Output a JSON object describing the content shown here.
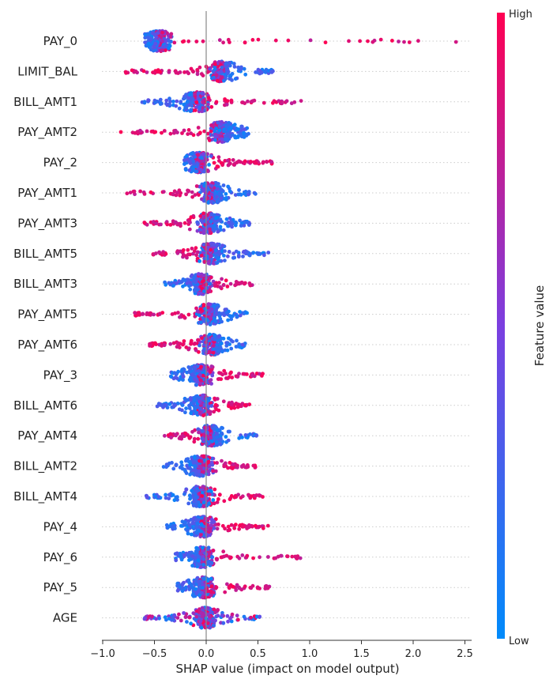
{
  "chart_data": {
    "type": "scatter",
    "subtype": "shap-beeswarm",
    "xlabel": "SHAP value (impact on model output)",
    "xlim": [
      -1.0,
      2.5
    ],
    "xticks": [
      -1.0,
      -0.5,
      0.0,
      0.5,
      1.0,
      1.5,
      2.0,
      2.5
    ],
    "xtick_labels": [
      "−1.0",
      "−0.5",
      "0.0",
      "0.5",
      "1.0",
      "1.5",
      "2.0",
      "2.5"
    ],
    "colorbar": {
      "label": "Feature value",
      "high_label": "High",
      "low_label": "Low",
      "low_color": "#008bfb",
      "high_color": "#ff0052"
    },
    "features": [
      {
        "name": "PAY_0",
        "min": -0.6,
        "max": 2.42,
        "low_side": "left",
        "low_center": -0.45
      },
      {
        "name": "LIMIT_BAL",
        "min": -0.8,
        "max": 0.65,
        "low_side": "right",
        "low_center": 0.15
      },
      {
        "name": "BILL_AMT1",
        "min": -0.62,
        "max": 0.92,
        "low_side": "left",
        "low_center": -0.1
      },
      {
        "name": "PAY_AMT2",
        "min": -0.85,
        "max": 0.42,
        "low_side": "right",
        "low_center": 0.15
      },
      {
        "name": "PAY_2",
        "min": -0.22,
        "max": 0.68,
        "low_side": "left",
        "low_center": -0.07
      },
      {
        "name": "PAY_AMT1",
        "min": -0.85,
        "max": 0.48,
        "low_side": "right",
        "low_center": 0.05
      },
      {
        "name": "PAY_AMT3",
        "min": -0.6,
        "max": 0.42,
        "low_side": "right",
        "low_center": 0.02
      },
      {
        "name": "BILL_AMT5",
        "min": -0.52,
        "max": 0.62,
        "low_side": "right",
        "low_center": 0.05
      },
      {
        "name": "BILL_AMT3",
        "min": -0.4,
        "max": 0.45,
        "low_side": "left",
        "low_center": -0.05
      },
      {
        "name": "PAY_AMT5",
        "min": -0.7,
        "max": 0.4,
        "low_side": "right",
        "low_center": 0.03
      },
      {
        "name": "PAY_AMT6",
        "min": -0.55,
        "max": 0.38,
        "low_side": "right",
        "low_center": 0.05
      },
      {
        "name": "PAY_3",
        "min": -0.38,
        "max": 0.55,
        "low_side": "left",
        "low_center": -0.05
      },
      {
        "name": "BILL_AMT6",
        "min": -0.48,
        "max": 0.42,
        "low_side": "left",
        "low_center": -0.05
      },
      {
        "name": "PAY_AMT4",
        "min": -0.42,
        "max": 0.5,
        "low_side": "right",
        "low_center": 0.04
      },
      {
        "name": "BILL_AMT2",
        "min": -0.42,
        "max": 0.48,
        "low_side": "left",
        "low_center": -0.05
      },
      {
        "name": "BILL_AMT4",
        "min": -0.58,
        "max": 0.55,
        "low_side": "left",
        "low_center": -0.05
      },
      {
        "name": "PAY_4",
        "min": -0.38,
        "max": 0.62,
        "low_side": "left",
        "low_center": -0.03
      },
      {
        "name": "PAY_6",
        "min": -0.3,
        "max": 0.92,
        "low_side": "left",
        "low_center": -0.03
      },
      {
        "name": "PAY_5",
        "min": -0.28,
        "max": 0.62,
        "low_side": "left",
        "low_center": -0.03
      },
      {
        "name": "AGE",
        "min": -0.6,
        "max": 0.52,
        "low_side": "mixed",
        "low_center": 0.0
      }
    ]
  }
}
